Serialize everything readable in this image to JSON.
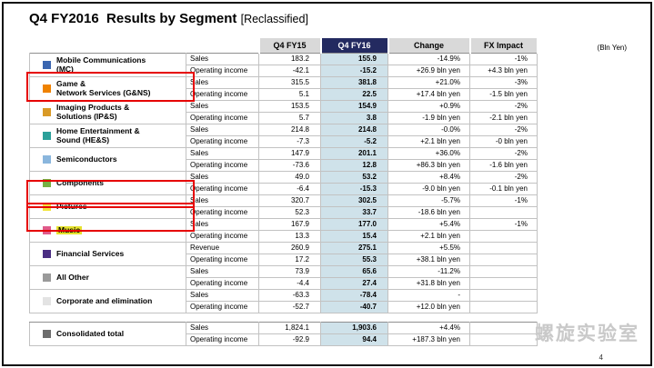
{
  "slide": {
    "title": "Q4 FY2016  Results by Segment",
    "title_tag": "[Reclassified]",
    "unit_note": "(Bln Yen)",
    "page_number": "4",
    "watermark": "螺旋实验室"
  },
  "colors": {
    "fy16_header_bg": "#232a60",
    "fy16_column_bg": "#cfe2ea",
    "header_gray_bg": "#d9d9d9",
    "annotation_red": "#e60000",
    "music_highlight": "#e6e22e"
  },
  "table": {
    "columns": [
      "Q4 FY15",
      "Q4 FY16",
      "Change",
      "FX Impact"
    ],
    "segments": [
      {
        "name": "Mobile Communications\n(MC)",
        "color": "#3b66b0",
        "rows": [
          [
            "Sales",
            "183.2",
            "155.9",
            "-14.9%",
            "-1%"
          ],
          [
            "Operating income",
            "-42.1",
            "-15.2",
            "+26.9 bln yen",
            "+4.3 bln yen"
          ]
        ]
      },
      {
        "name": "Game &\nNetwork Services (G&NS)",
        "color": "#ef8200",
        "rows": [
          [
            "Sales",
            "315.5",
            "381.8",
            "+21.0%",
            "-3%"
          ],
          [
            "Operating income",
            "5.1",
            "22.5",
            "+17.4 bln yen",
            "-1.5 bln yen"
          ]
        ]
      },
      {
        "name": "Imaging Products &\nSolutions (IP&S)",
        "color": "#d99a26",
        "rows": [
          [
            "Sales",
            "153.5",
            "154.9",
            "+0.9%",
            "-2%"
          ],
          [
            "Operating income",
            "5.7",
            "3.8",
            "-1.9 bln yen",
            "-2.1 bln yen"
          ]
        ]
      },
      {
        "name": "Home Entertainment &\nSound (HE&S)",
        "color": "#2ba09a",
        "rows": [
          [
            "Sales",
            "214.8",
            "214.8",
            "-0.0%",
            "-2%"
          ],
          [
            "Operating income",
            "-7.3",
            "-5.2",
            "+2.1 bln yen",
            "-0 bln yen"
          ]
        ]
      },
      {
        "name": "Semiconductors",
        "color": "#8ab6dd",
        "rows": [
          [
            "Sales",
            "147.9",
            "201.1",
            "+36.0%",
            "-2%"
          ],
          [
            "Operating income",
            "-73.6",
            "12.8",
            "+86.3 bln yen",
            "-1.6 bln yen"
          ]
        ]
      },
      {
        "name": "Components",
        "color": "#76b043",
        "rows": [
          [
            "Sales",
            "49.0",
            "53.2",
            "+8.4%",
            "-2%"
          ],
          [
            "Operating income",
            "-6.4",
            "-15.3",
            "-9.0 bln yen",
            "-0.1 bln yen"
          ]
        ]
      },
      {
        "name": "Pictures",
        "color": "#f2e53a",
        "rows": [
          [
            "Sales",
            "320.7",
            "302.5",
            "-5.7%",
            "-1%"
          ],
          [
            "Operating income",
            "52.3",
            "33.7",
            "-18.6 bln yen",
            ""
          ]
        ]
      },
      {
        "name": "Music",
        "color": "#e05a8a",
        "highlight": true,
        "rows": [
          [
            "Sales",
            "167.9",
            "177.0",
            "+5.4%",
            "-1%"
          ],
          [
            "Operating income",
            "13.3",
            "15.4",
            "+2.1 bln yen",
            ""
          ]
        ]
      },
      {
        "name": "Financial Services",
        "color": "#4b2e83",
        "rows": [
          [
            "Revenue",
            "260.9",
            "275.1",
            "+5.5%",
            ""
          ],
          [
            "Operating income",
            "17.2",
            "55.3",
            "+38.1 bln yen",
            ""
          ]
        ]
      },
      {
        "name": "All Other",
        "color": "#9a9a9a",
        "rows": [
          [
            "Sales",
            "73.9",
            "65.6",
            "-11.2%",
            ""
          ],
          [
            "Operating income",
            "-4.4",
            "27.4",
            "+31.8 bln yen",
            ""
          ]
        ]
      },
      {
        "name": "Corporate and elimination",
        "color": "#e3e3e3",
        "rows": [
          [
            "Sales",
            "-63.3",
            "-78.4",
            "-",
            ""
          ],
          [
            "Operating income",
            "-52.7",
            "-40.7",
            "+12.0 bln yen",
            ""
          ]
        ]
      }
    ],
    "total": {
      "name": "Consolidated total",
      "color": "#6d6d6d",
      "rows": [
        [
          "Sales",
          "1,824.1",
          "1,903.6",
          "+4.4%",
          ""
        ],
        [
          "Operating income",
          "-92.9",
          "94.4",
          "+187.3 bln yen",
          ""
        ]
      ]
    }
  }
}
